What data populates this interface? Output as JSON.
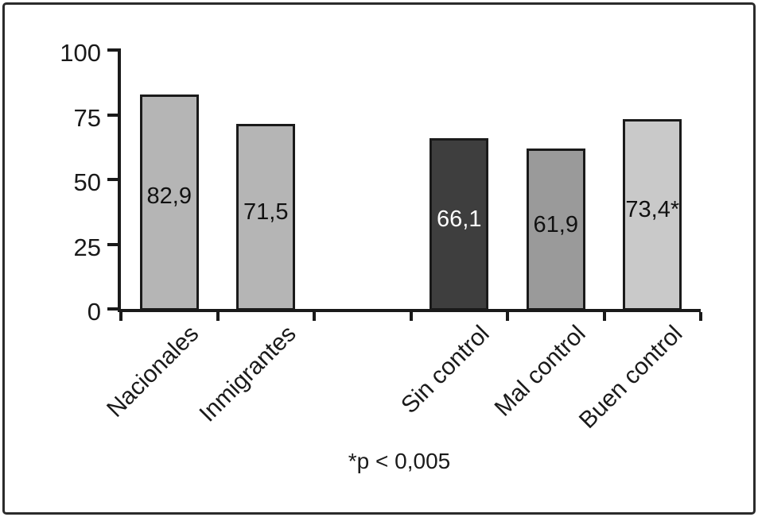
{
  "figure": {
    "background": "#ffffff",
    "frame_border_color": "#2b2b2b"
  },
  "chart_data": {
    "type": "bar",
    "title": "",
    "xlabel": "",
    "ylabel": "",
    "categories": [
      "Nacionales",
      "Inmigrantes",
      "Sin control",
      "Mal control",
      "Buen control"
    ],
    "values": [
      82.9,
      71.5,
      66.1,
      61.9,
      73.4
    ],
    "bars": [
      {
        "category": "Nacionales",
        "value": 82.9,
        "value_label": "82,9",
        "fill": "#b5b5b5",
        "label_color": "#111111",
        "slot": 0
      },
      {
        "category": "Inmigrantes",
        "value": 71.5,
        "value_label": "71,5",
        "fill": "#b5b5b5",
        "label_color": "#111111",
        "slot": 1
      },
      {
        "category": "Sin control",
        "value": 66.1,
        "value_label": "66,1",
        "fill": "#3e3e3e",
        "label_color": "#ffffff",
        "slot": 3
      },
      {
        "category": "Mal control",
        "value": 61.9,
        "value_label": "61,9",
        "fill": "#9a9a9a",
        "label_color": "#111111",
        "slot": 4
      },
      {
        "category": "Buen control",
        "value": 73.4,
        "value_label": "73,4*",
        "fill": "#c9c9c9",
        "label_color": "#111111",
        "slot": 5
      }
    ],
    "y_ticks": [
      0,
      25,
      50,
      75,
      100
    ],
    "ylim": [
      0,
      100
    ],
    "num_slots": 6,
    "grid": false,
    "legend": false,
    "axis_color": "#1a1a1a",
    "bar_border_color": "#1a1a1a",
    "annotation": "*p < 0,005"
  }
}
